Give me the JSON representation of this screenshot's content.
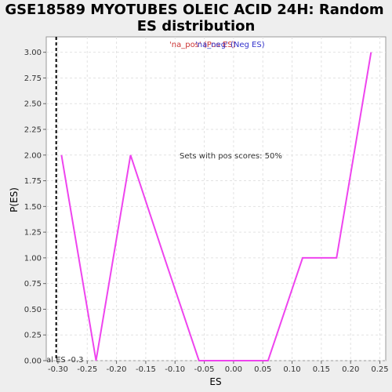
{
  "chart_data": {
    "type": "line",
    "title_line1": "GSE18589 MYOTUBES OLEIC ACID 24H: Random",
    "title_line2": "ES distribution",
    "xlabel": "ES",
    "ylabel": "P(ES)",
    "xlim": [
      -0.32,
      0.26
    ],
    "ylim": [
      0,
      3.15
    ],
    "xticks": [
      -0.3,
      -0.25,
      -0.2,
      -0.15,
      -0.1,
      -0.05,
      0.0,
      0.05,
      0.1,
      0.15,
      0.2,
      0.25
    ],
    "xtick_labels": [
      "-0.30",
      "-0.25",
      "-0.20",
      "-0.15",
      "-0.10",
      "-0.05",
      "0.00",
      "0.05",
      "0.10",
      "0.15",
      "0.20",
      "0.25"
    ],
    "yticks": [
      0.0,
      0.25,
      0.5,
      0.75,
      1.0,
      1.25,
      1.5,
      1.75,
      2.0,
      2.25,
      2.5,
      2.75,
      3.0
    ],
    "ytick_labels": [
      "0.00",
      "0.25",
      "0.50",
      "0.75",
      "1.00",
      "1.25",
      "1.50",
      "1.75",
      "2.00",
      "2.25",
      "2.50",
      "2.75",
      "3.00"
    ],
    "grid": true,
    "legend": {
      "placement": "top-center",
      "pos_label": "'na_pos' (Pos ES)",
      "neg_label": "'na_neg' (Neg ES)",
      "pos_color": "#cc3333",
      "neg_color": "#3333cc"
    },
    "series": [
      {
        "color": "#ee44ee",
        "x": [
          -0.294,
          -0.235,
          -0.176,
          -0.118,
          -0.059,
          0.0,
          0.059,
          0.118,
          0.176,
          0.235
        ],
        "y": [
          2.0,
          0.0,
          2.0,
          1.0,
          0.0,
          0.0,
          0.0,
          1.0,
          1.0,
          3.0
        ]
      }
    ],
    "vline": {
      "x": -0.303,
      "style": "dashed",
      "color": "#000000"
    },
    "vline_label": "al ES -0.3",
    "annotation": "Sets with pos scores: 50%"
  }
}
